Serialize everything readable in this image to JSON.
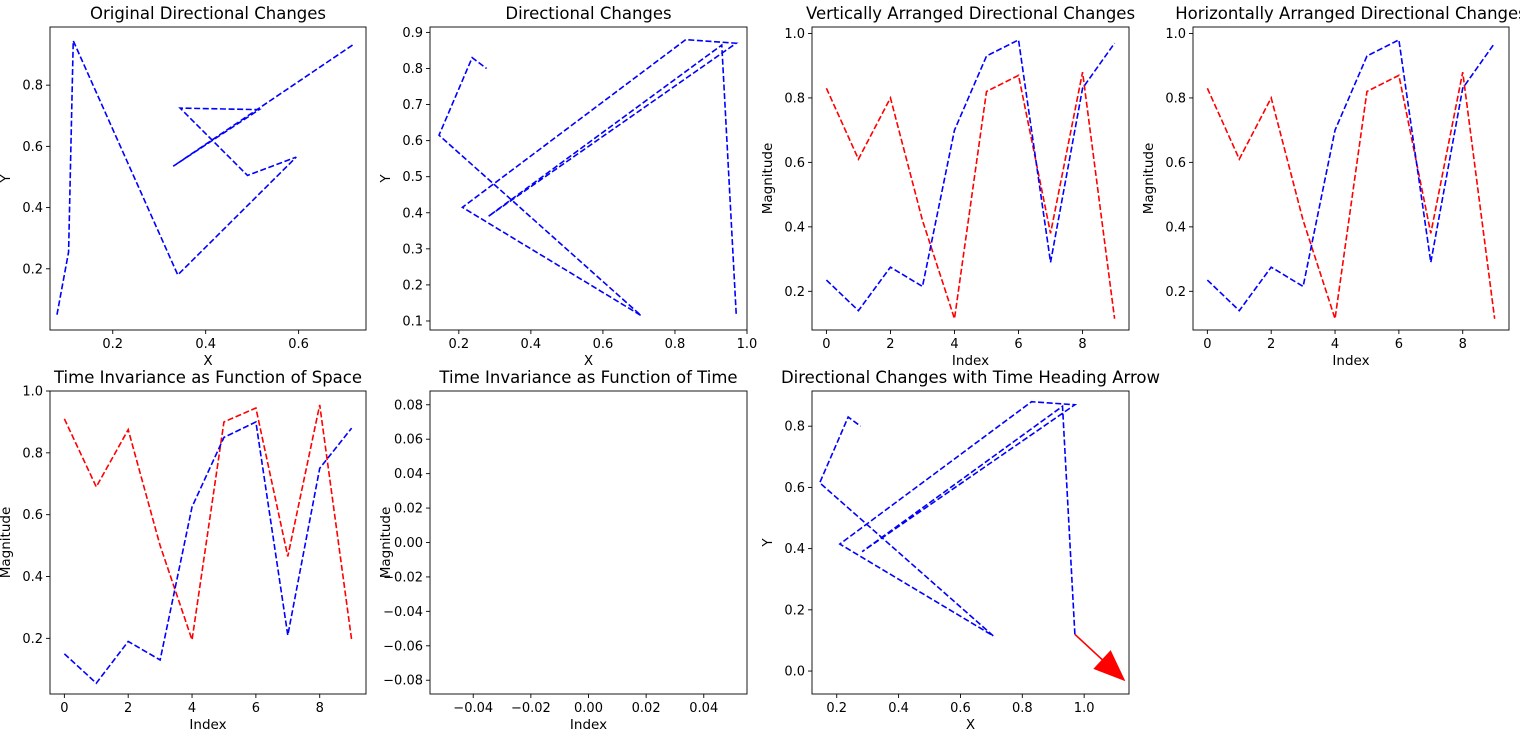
{
  "chart_data": [
    {
      "type": "line",
      "title": "Original Directional Changes",
      "xlabel": "X",
      "ylabel": "Y",
      "xlim": [
        0.065,
        0.745
      ],
      "ylim": [
        0.0,
        0.99
      ],
      "xticks": [
        0.2,
        0.4,
        0.6
      ],
      "yticks": [
        0.2,
        0.4,
        0.6,
        0.8
      ],
      "xticklabels": [
        "0.2",
        "0.4",
        "0.6"
      ],
      "yticklabels": [
        "0.2",
        "0.4",
        "0.6",
        "0.8"
      ],
      "series": [
        {
          "color": "#0000ff",
          "linestyle": "dashed",
          "x": [
            0.08,
            0.105,
            0.115,
            0.34,
            0.595,
            0.49,
            0.345,
            0.515,
            0.33,
            0.72
          ],
          "y": [
            0.05,
            0.255,
            0.945,
            0.18,
            0.565,
            0.505,
            0.725,
            0.72,
            0.535,
            0.935
          ]
        }
      ]
    },
    {
      "type": "line",
      "title": "Directional Changes",
      "xlabel": "X",
      "ylabel": "Y",
      "xlim": [
        0.12,
        1.0
      ],
      "ylim": [
        0.075,
        0.915
      ],
      "xticks": [
        0.2,
        0.4,
        0.6,
        0.8,
        1.0
      ],
      "yticks": [
        0.1,
        0.2,
        0.3,
        0.4,
        0.5,
        0.6,
        0.7,
        0.8,
        0.9
      ],
      "xticklabels": [
        "0.2",
        "0.4",
        "0.6",
        "0.8",
        "1.0"
      ],
      "yticklabels": [
        "0.1",
        "0.2",
        "0.3",
        "0.4",
        "0.5",
        "0.6",
        "0.7",
        "0.8",
        "0.9"
      ],
      "series": [
        {
          "color": "#0000ff",
          "linestyle": "dashed",
          "x": [
            0.97,
            0.93,
            0.282,
            0.97,
            0.83,
            0.21,
            0.706,
            0.145,
            0.237,
            0.277
          ],
          "y": [
            0.12,
            0.865,
            0.39,
            0.87,
            0.88,
            0.415,
            0.115,
            0.615,
            0.83,
            0.8
          ]
        }
      ]
    },
    {
      "type": "line",
      "title": "Vertically Arranged Directional Changes",
      "xlabel": "Index",
      "ylabel": "Magnitude",
      "xlim": [
        -0.45,
        9.45
      ],
      "ylim": [
        0.08,
        1.02
      ],
      "xticks": [
        0,
        2,
        4,
        6,
        8
      ],
      "yticks": [
        0.2,
        0.4,
        0.6,
        0.8,
        1.0
      ],
      "xticklabels": [
        "0",
        "2",
        "4",
        "6",
        "8"
      ],
      "yticklabels": [
        "0.2",
        "0.4",
        "0.6",
        "0.8",
        "1.0"
      ],
      "series": [
        {
          "color": "#ff0000",
          "linestyle": "dashed",
          "x": [
            0,
            1,
            2,
            3,
            4,
            5,
            6,
            7,
            8,
            9
          ],
          "y": [
            0.83,
            0.61,
            0.8,
            0.42,
            0.115,
            0.82,
            0.87,
            0.38,
            0.88,
            0.115
          ]
        },
        {
          "color": "#0000ff",
          "linestyle": "dashed",
          "x": [
            0,
            1,
            2,
            3,
            4,
            5,
            6,
            7,
            8,
            9
          ],
          "y": [
            0.235,
            0.14,
            0.275,
            0.215,
            0.7,
            0.93,
            0.98,
            0.29,
            0.83,
            0.97
          ]
        }
      ]
    },
    {
      "type": "line",
      "title": "Horizontally Arranged Directional Changes",
      "xlabel": "Index",
      "ylabel": "Magnitude",
      "xlim": [
        -0.45,
        9.45
      ],
      "ylim": [
        0.08,
        1.02
      ],
      "xticks": [
        0,
        2,
        4,
        6,
        8
      ],
      "yticks": [
        0.2,
        0.4,
        0.6,
        0.8,
        1.0
      ],
      "xticklabels": [
        "0",
        "2",
        "4",
        "6",
        "8"
      ],
      "yticklabels": [
        "0.2",
        "0.4",
        "0.6",
        "0.8",
        "1.0"
      ],
      "series": [
        {
          "color": "#ff0000",
          "linestyle": "dashed",
          "x": [
            0,
            1,
            2,
            3,
            4,
            5,
            6,
            7,
            8,
            9
          ],
          "y": [
            0.83,
            0.61,
            0.8,
            0.42,
            0.115,
            0.82,
            0.87,
            0.38,
            0.88,
            0.115
          ]
        },
        {
          "color": "#0000ff",
          "linestyle": "dashed",
          "x": [
            0,
            1,
            2,
            3,
            4,
            5,
            6,
            7,
            8,
            9
          ],
          "y": [
            0.235,
            0.14,
            0.275,
            0.215,
            0.7,
            0.93,
            0.98,
            0.29,
            0.83,
            0.97
          ]
        }
      ]
    },
    {
      "type": "line",
      "title": "Time Invariance as Function of Space",
      "xlabel": "Index",
      "ylabel": "Magnitude",
      "xlim": [
        -0.45,
        9.45
      ],
      "ylim": [
        0.02,
        1.0
      ],
      "xticks": [
        0,
        2,
        4,
        6,
        8
      ],
      "yticks": [
        0.2,
        0.4,
        0.6,
        0.8,
        1.0
      ],
      "xticklabels": [
        "0",
        "2",
        "4",
        "6",
        "8"
      ],
      "yticklabels": [
        "0.2",
        "0.4",
        "0.6",
        "0.8",
        "1.0"
      ],
      "series": [
        {
          "color": "#ff0000",
          "linestyle": "dashed",
          "x": [
            0,
            1,
            2,
            3,
            4,
            5,
            6,
            7,
            8,
            9
          ],
          "y": [
            0.91,
            0.69,
            0.875,
            0.5,
            0.195,
            0.9,
            0.945,
            0.465,
            0.955,
            0.195
          ]
        },
        {
          "color": "#0000ff",
          "linestyle": "dashed",
          "x": [
            0,
            1,
            2,
            3,
            4,
            5,
            6,
            7,
            8,
            9
          ],
          "y": [
            0.15,
            0.055,
            0.19,
            0.13,
            0.625,
            0.85,
            0.9,
            0.21,
            0.75,
            0.88
          ]
        }
      ]
    },
    {
      "type": "line",
      "title": "Time Invariance as Function of Time",
      "xlabel": "Index",
      "ylabel": "Magnitude",
      "xlim": [
        -0.055,
        0.055
      ],
      "ylim": [
        -0.088,
        0.088
      ],
      "xticks": [
        -0.04,
        -0.02,
        0.0,
        0.02,
        0.04
      ],
      "yticks": [
        -0.08,
        -0.06,
        -0.04,
        -0.02,
        0.0,
        0.02,
        0.04,
        0.06,
        0.08
      ],
      "xticklabels": [
        "−0.04",
        "−0.02",
        "0.00",
        "0.02",
        "0.04"
      ],
      "yticklabels": [
        "−0.08",
        "−0.06",
        "−0.04",
        "−0.02",
        "0.00",
        "0.02",
        "0.04",
        "0.06",
        "0.08"
      ],
      "series": []
    },
    {
      "type": "line",
      "title": "Directional Changes with Time Heading Arrow",
      "xlabel": "X",
      "ylabel": "Y",
      "xlim": [
        0.12,
        1.145
      ],
      "ylim": [
        -0.075,
        0.915
      ],
      "xticks": [
        0.2,
        0.4,
        0.6,
        0.8,
        1.0
      ],
      "yticks": [
        0.0,
        0.2,
        0.4,
        0.6,
        0.8
      ],
      "xticklabels": [
        "0.2",
        "0.4",
        "0.6",
        "0.8",
        "1.0"
      ],
      "yticklabels": [
        "0.0",
        "0.2",
        "0.4",
        "0.6",
        "0.8"
      ],
      "series": [
        {
          "color": "#0000ff",
          "linestyle": "dashed",
          "x": [
            0.97,
            0.93,
            0.282,
            0.97,
            0.83,
            0.21,
            0.706,
            0.145,
            0.237,
            0.277
          ],
          "y": [
            0.12,
            0.865,
            0.39,
            0.87,
            0.88,
            0.415,
            0.115,
            0.615,
            0.83,
            0.8
          ]
        }
      ],
      "arrow": {
        "color": "#ff0000",
        "x": 0.97,
        "y": 0.12,
        "dx": 0.16,
        "dy": -0.15
      }
    }
  ]
}
